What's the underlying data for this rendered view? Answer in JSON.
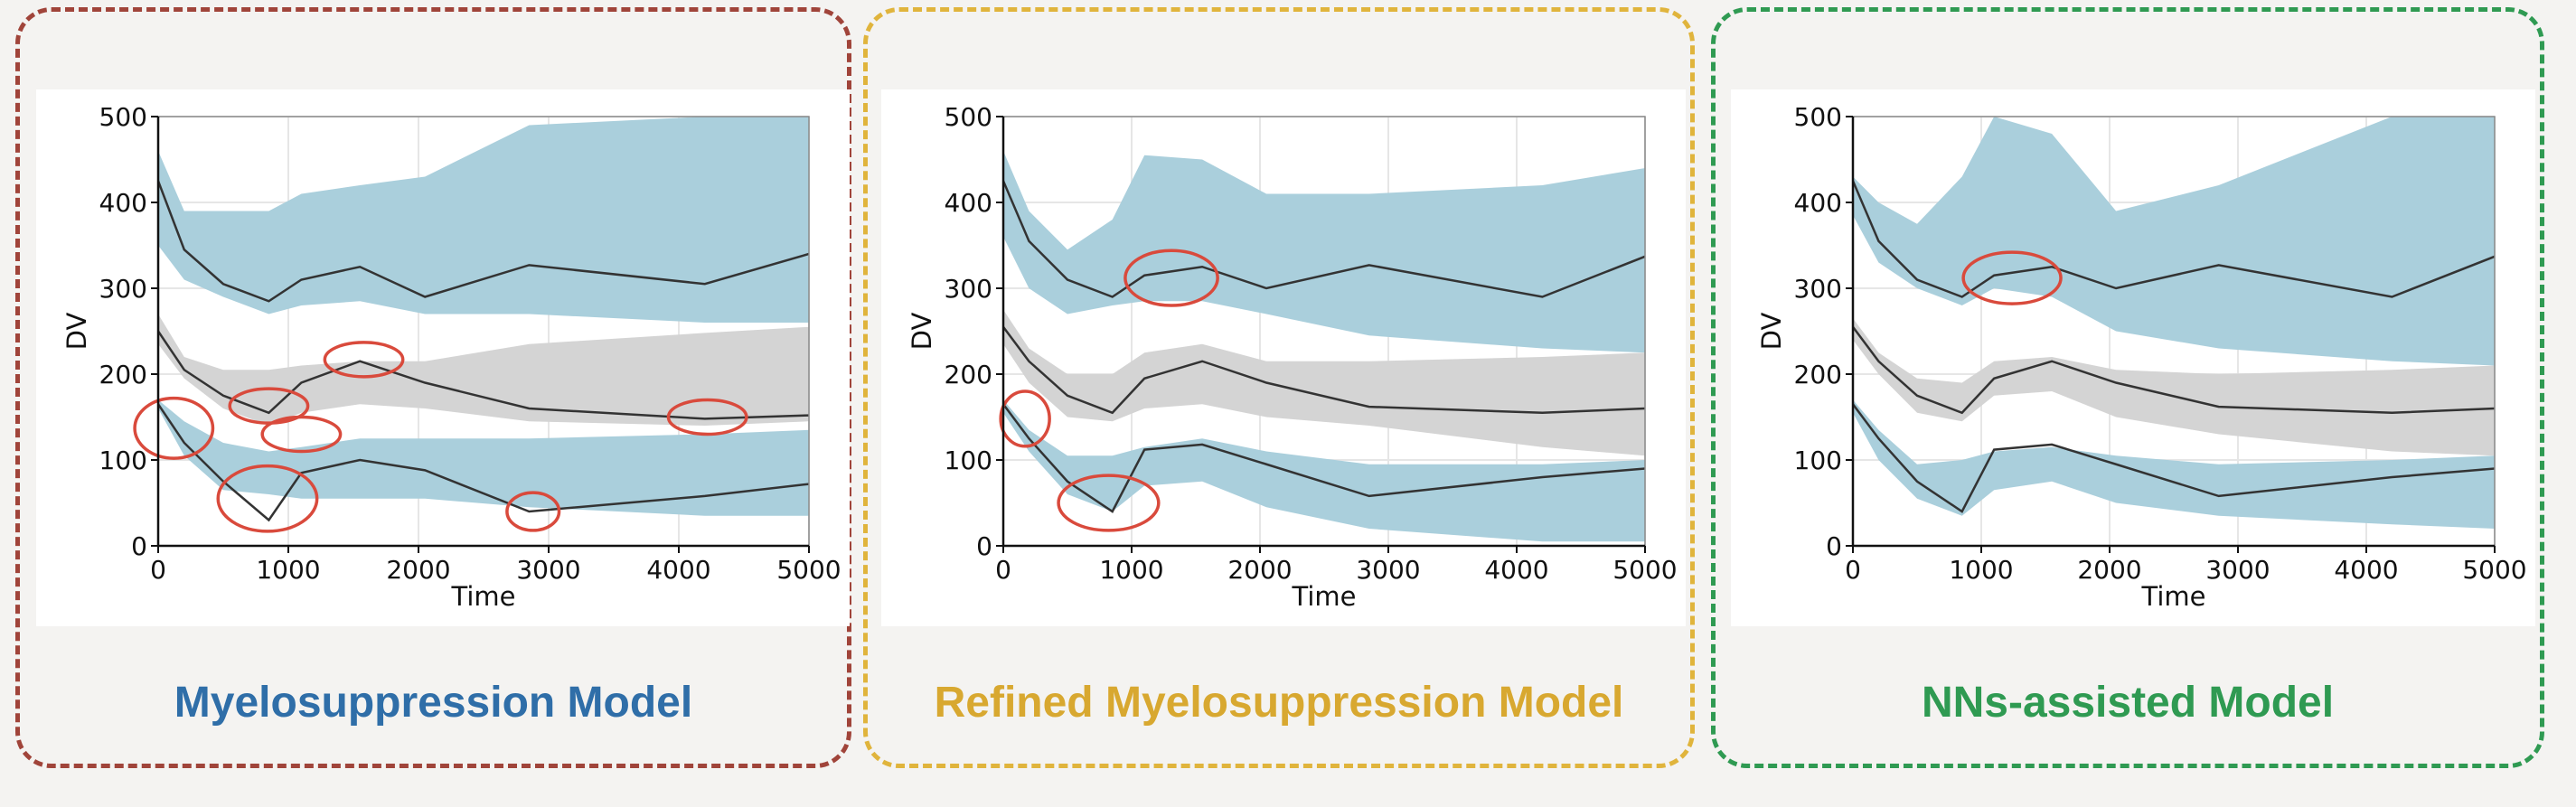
{
  "colors": {
    "band_outer": "#aacfdc",
    "band_median": "#d4d4d4",
    "line": "#333333",
    "highlight": "#d94a3c",
    "panel_border": [
      "#a0443a",
      "#e0b43c",
      "#2f9a52"
    ],
    "title": [
      "#2f6ea8",
      "#d8a830",
      "#2f9a52"
    ]
  },
  "panels": [
    {
      "title": "Myelosuppression Model"
    },
    {
      "title": "Refined Myelosuppression Model"
    },
    {
      "title": "NNs-assisted Model"
    }
  ],
  "chart_data": [
    {
      "type": "area",
      "xlabel": "Time",
      "ylabel": "DV",
      "xlim": [
        0,
        5000
      ],
      "ylim": [
        0,
        500
      ],
      "xticks": [
        0,
        1000,
        2000,
        3000,
        4000,
        5000
      ],
      "yticks": [
        0,
        100,
        200,
        300,
        400,
        500
      ],
      "grid": true,
      "x": [
        0,
        200,
        500,
        850,
        1100,
        1550,
        2050,
        2850,
        4200,
        5000
      ],
      "lines": [
        {
          "values": [
            425,
            345,
            305,
            285,
            310,
            325,
            290,
            327,
            305,
            340
          ]
        },
        {
          "values": [
            250,
            205,
            175,
            155,
            190,
            215,
            190,
            160,
            148,
            152
          ]
        },
        {
          "values": [
            165,
            120,
            75,
            30,
            85,
            100,
            88,
            40,
            58,
            72
          ]
        }
      ],
      "bands": [
        {
          "lower": [
            350,
            310,
            290,
            270,
            280,
            285,
            270,
            270,
            260,
            260
          ],
          "upper": [
            460,
            390,
            390,
            390,
            410,
            420,
            430,
            490,
            500,
            500
          ]
        },
        {
          "lower": [
            235,
            195,
            160,
            140,
            155,
            165,
            160,
            145,
            140,
            145
          ],
          "upper": [
            270,
            220,
            205,
            205,
            210,
            215,
            215,
            235,
            248,
            255
          ]
        },
        {
          "lower": [
            160,
            105,
            65,
            60,
            55,
            55,
            55,
            45,
            35,
            35
          ],
          "upper": [
            170,
            145,
            120,
            110,
            115,
            125,
            125,
            125,
            130,
            135
          ]
        }
      ],
      "highlight_ellipses": [
        {
          "x": 120,
          "y": 137,
          "rx": 300,
          "ry": 35
        },
        {
          "x": 840,
          "y": 55,
          "rx": 380,
          "ry": 38
        },
        {
          "x": 850,
          "y": 163,
          "rx": 300,
          "ry": 20
        },
        {
          "x": 1100,
          "y": 130,
          "rx": 300,
          "ry": 20
        },
        {
          "x": 1580,
          "y": 217,
          "rx": 300,
          "ry": 20
        },
        {
          "x": 2880,
          "y": 40,
          "rx": 200,
          "ry": 22
        },
        {
          "x": 4220,
          "y": 150,
          "rx": 300,
          "ry": 20
        }
      ]
    },
    {
      "type": "area",
      "xlabel": "Time",
      "ylabel": "DV",
      "xlim": [
        0,
        5000
      ],
      "ylim": [
        0,
        500
      ],
      "xticks": [
        0,
        1000,
        2000,
        3000,
        4000,
        5000
      ],
      "yticks": [
        0,
        100,
        200,
        300,
        400,
        500
      ],
      "grid": true,
      "x": [
        0,
        200,
        500,
        850,
        1100,
        1550,
        2050,
        2850,
        4200,
        5000
      ],
      "lines": [
        {
          "values": [
            425,
            355,
            310,
            290,
            315,
            325,
            300,
            327,
            290,
            337
          ]
        },
        {
          "values": [
            255,
            215,
            175,
            155,
            195,
            215,
            190,
            162,
            155,
            160
          ]
        },
        {
          "values": [
            165,
            125,
            75,
            40,
            112,
            118,
            95,
            58,
            80,
            90
          ]
        }
      ],
      "bands": [
        {
          "lower": [
            360,
            300,
            270,
            280,
            285,
            285,
            270,
            245,
            230,
            225
          ],
          "upper": [
            460,
            390,
            345,
            380,
            455,
            450,
            410,
            410,
            420,
            440
          ]
        },
        {
          "lower": [
            235,
            190,
            150,
            145,
            160,
            165,
            150,
            140,
            115,
            105
          ],
          "upper": [
            275,
            230,
            200,
            200,
            225,
            235,
            215,
            215,
            220,
            225
          ]
        },
        {
          "lower": [
            155,
            110,
            60,
            40,
            70,
            75,
            45,
            20,
            5,
            5
          ],
          "upper": [
            170,
            135,
            105,
            105,
            115,
            125,
            110,
            95,
            95,
            100
          ]
        }
      ],
      "highlight_ellipses": [
        {
          "x": 1310,
          "y": 312,
          "rx": 360,
          "ry": 32
        },
        {
          "x": 170,
          "y": 148,
          "rx": 190,
          "ry": 32
        },
        {
          "x": 820,
          "y": 50,
          "rx": 390,
          "ry": 32
        }
      ]
    },
    {
      "type": "area",
      "xlabel": "Time",
      "ylabel": "DV",
      "xlim": [
        0,
        5000
      ],
      "ylim": [
        0,
        500
      ],
      "xticks": [
        0,
        1000,
        2000,
        3000,
        4000,
        5000
      ],
      "yticks": [
        0,
        100,
        200,
        300,
        400,
        500
      ],
      "grid": true,
      "x": [
        0,
        200,
        500,
        850,
        1100,
        1550,
        2050,
        2850,
        4200,
        5000
      ],
      "lines": [
        {
          "values": [
            425,
            355,
            310,
            290,
            315,
            325,
            300,
            327,
            290,
            337
          ]
        },
        {
          "values": [
            255,
            215,
            175,
            155,
            195,
            215,
            190,
            162,
            155,
            160
          ]
        },
        {
          "values": [
            165,
            125,
            75,
            40,
            112,
            118,
            95,
            58,
            80,
            90
          ]
        }
      ],
      "bands": [
        {
          "lower": [
            385,
            330,
            300,
            280,
            300,
            290,
            250,
            230,
            215,
            210
          ],
          "upper": [
            430,
            400,
            375,
            430,
            500,
            480,
            390,
            420,
            500,
            500
          ]
        },
        {
          "lower": [
            240,
            200,
            155,
            145,
            175,
            180,
            150,
            130,
            110,
            105
          ],
          "upper": [
            265,
            225,
            195,
            190,
            215,
            220,
            205,
            200,
            205,
            210
          ]
        },
        {
          "lower": [
            155,
            100,
            55,
            35,
            65,
            75,
            50,
            35,
            25,
            20
          ],
          "upper": [
            170,
            135,
            95,
            100,
            110,
            115,
            105,
            95,
            100,
            105
          ]
        }
      ],
      "highlight_ellipses": [
        {
          "x": 1240,
          "y": 312,
          "rx": 380,
          "ry": 30
        }
      ]
    }
  ]
}
